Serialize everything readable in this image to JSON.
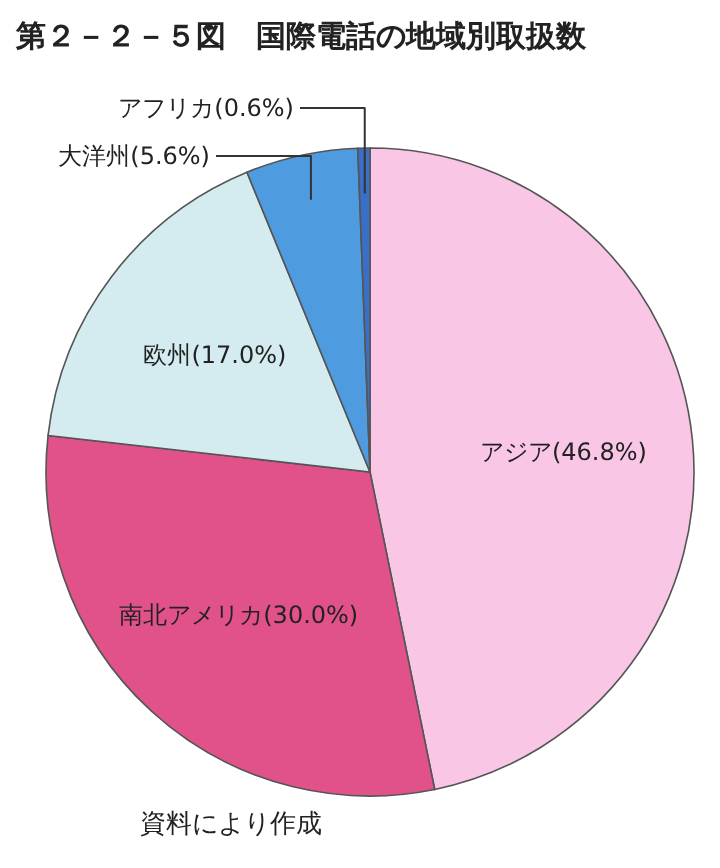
{
  "chart_data": {
    "type": "pie",
    "title": "第２－２－５図　国際電話の地域別取扱数",
    "categories": [
      "アジア",
      "南北アメリカ",
      "欧州",
      "大洋州",
      "アフリカ"
    ],
    "values": [
      46.8,
      30.0,
      17.0,
      5.6,
      0.6
    ],
    "value_labels": [
      "(46.8%)",
      "(30.0%)",
      "(17.0%)",
      "(5.6%)",
      "(0.6%)"
    ],
    "colors": [
      "#f9c6e6",
      "#e2528a",
      "#d4ecf0",
      "#4e9be0",
      "#3a6fc8"
    ],
    "annotations": [
      "資料により作成"
    ]
  }
}
